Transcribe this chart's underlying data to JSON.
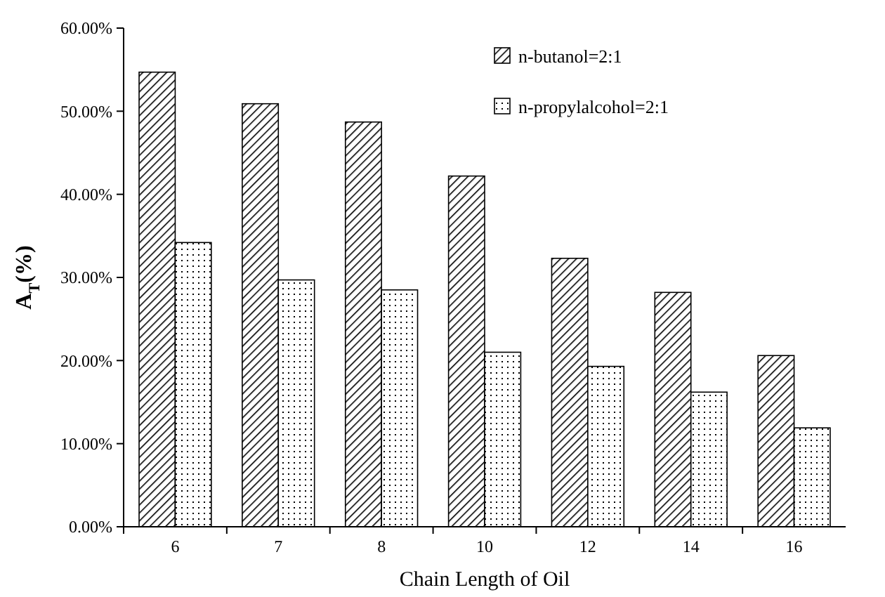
{
  "chart_data": {
    "type": "bar",
    "xlabel": "Chain Length of Oil",
    "ylabel": "A$_{T}$(%)",
    "categories": [
      "6",
      "7",
      "8",
      "10",
      "12",
      "14",
      "16"
    ],
    "series": [
      {
        "name": "n-butanol=2:1",
        "color": "#000000",
        "values": [
          54.7,
          50.9,
          48.7,
          42.2,
          32.3,
          28.2,
          20.6
        ]
      },
      {
        "name": "n-propylalcohol=2:1",
        "color": "#000000",
        "values": [
          34.2,
          29.7,
          28.5,
          21.0,
          19.3,
          16.2,
          11.9
        ]
      }
    ],
    "ylim": [
      0,
      60
    ],
    "yticks": [
      {
        "value": 0,
        "label": "0.00%"
      },
      {
        "value": 10,
        "label": "10.00%"
      },
      {
        "value": 20,
        "label": "20.00%"
      },
      {
        "value": 30,
        "label": "30.00%"
      },
      {
        "value": 40,
        "label": "40.00%"
      },
      {
        "value": 50,
        "label": "50.00%"
      },
      {
        "value": 60,
        "label": "60.00%"
      }
    ],
    "legend": "top right",
    "grid": false
  }
}
